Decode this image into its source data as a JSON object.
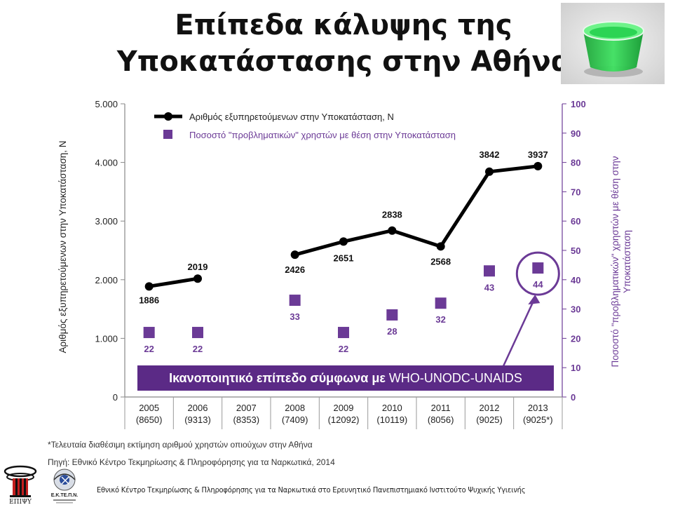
{
  "title_line1": "Επίπεδα κάλυψης της",
  "title_line2": "Υποκατάστασης στην Αθήνα",
  "banner": {
    "bold_part": "Ικανοποιητικό επίπεδο σύμφωνα με ",
    "normal_part": "WHO-UNODC-UNAIDS"
  },
  "footnote1": "*Τελευταία διαθέσιμη εκτίμηση αριθμού χρηστών οπιούχων στην Αθήνα",
  "footnote2": "Πηγή: Εθνικό Κέντρο Τεκμηρίωσης & Πληροφόρησης για τα Ναρκωτικά, 2014",
  "bottom_text": "Εθνικό Κέντρο Τεκμηρίωσης & Πληροφόρησης για τα Ναρκωτικά στο Ερευνητικό Πανεπιστημιακό Ινστιτούτο Ψυχικής Υγιεινής",
  "logos": {
    "left_text": "ΕΠΙΨΥ",
    "right_text": "Ε.Κ.ΤΕ.Π.Ν."
  },
  "colors": {
    "line": "#000000",
    "marker": "#6b3a96",
    "axis_right": "#6b3a96",
    "banner": "#5b2a86"
  },
  "chart_data": {
    "type": "line",
    "categories": [
      "2005\n(8650)",
      "2006\n(9313)",
      "2007\n(8353)",
      "2008\n(7409)",
      "2009\n(12092)",
      "2010\n(10119)",
      "2011\n(8056)",
      "2012\n(9025)",
      "2013\n(9025*)"
    ],
    "category_years": [
      "2005",
      "2006",
      "2007",
      "2008",
      "2009",
      "2010",
      "2011",
      "2012",
      "2013"
    ],
    "category_sub": [
      "(8650)",
      "(9313)",
      "(8353)",
      "(7409)",
      "(12092)",
      "(10119)",
      "(8056)",
      "(9025)",
      "(9025*)"
    ],
    "series": [
      {
        "name": "Αριθμός εξυπηρετούμενων στην Υποκατάσταση, Ν",
        "axis": "left",
        "values": [
          1886,
          2019,
          null,
          2426,
          2651,
          2838,
          2568,
          3842,
          3937
        ],
        "labels": [
          "1886",
          "2019",
          "",
          "2426",
          "2651",
          "2838",
          "2568",
          "3842",
          "3937"
        ]
      },
      {
        "name": "Ποσοστό \"προβληματικών\" χρηστών με θέση στην Υποκατάσταση",
        "axis": "right",
        "values": [
          22,
          22,
          null,
          33,
          22,
          28,
          32,
          43,
          44
        ],
        "labels": [
          "22",
          "22",
          "",
          "33",
          "22",
          "28",
          "32",
          "43",
          "44"
        ]
      }
    ],
    "ylabel_left": "Αριθμός εξυπηρετούμενων στην Υποκατάσταση, Ν",
    "ylabel_right": "Ποσοστό \"προβληματικών\" χρηστών με θέση στην Υποκατάσταση",
    "ylim_left": [
      0,
      5000
    ],
    "ylim_right": [
      0,
      100
    ],
    "yticks_left": [
      "0",
      "1.000",
      "2.000",
      "3.000",
      "4.000",
      "5.000"
    ],
    "yticks_right": [
      "0",
      "10",
      "20",
      "30",
      "40",
      "50",
      "60",
      "70",
      "80",
      "90",
      "100"
    ],
    "grid": false,
    "legend_position": "top-left",
    "highlight_category": "2013"
  }
}
